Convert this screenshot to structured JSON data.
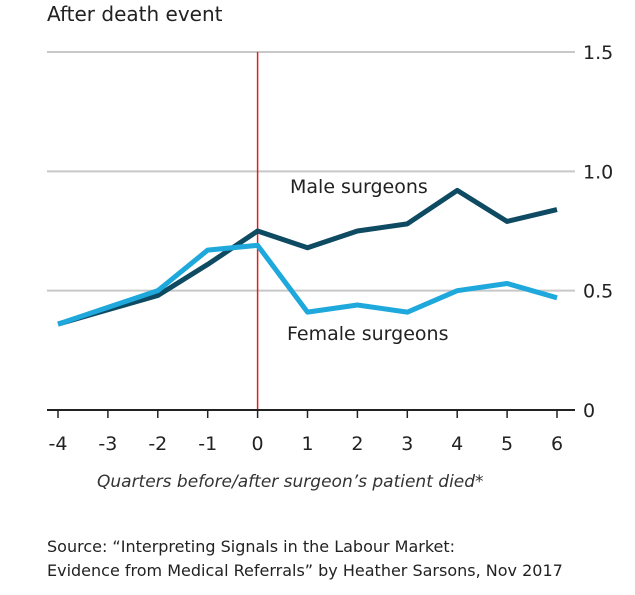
{
  "chart_data": {
    "type": "line",
    "title": "After death event",
    "xlabel": "Quarters before/after surgeon’s patient died*",
    "ylabel": "",
    "x": [
      -4,
      -3,
      -2,
      -1,
      0,
      1,
      2,
      3,
      4,
      5,
      6
    ],
    "x_tick_labels": [
      "-4",
      "-3",
      "-2",
      "-1",
      "0",
      "1",
      "2",
      "3",
      "4",
      "5",
      "6"
    ],
    "y_ticks": [
      0,
      0.5,
      1.0,
      1.5
    ],
    "y_tick_labels": [
      "0",
      "0.5",
      "1.0",
      "1.5"
    ],
    "ylim": [
      0,
      1.5
    ],
    "xlim": [
      -4,
      6
    ],
    "grid": true,
    "event_marker_x": 0,
    "series": [
      {
        "name": "Male surgeons",
        "color": "#0e4a62",
        "values": [
          0.36,
          0.42,
          0.48,
          0.61,
          0.75,
          0.68,
          0.75,
          0.78,
          0.92,
          0.79,
          0.84
        ]
      },
      {
        "name": "Female surgeons",
        "color": "#1ea8dc",
        "values": [
          0.36,
          0.43,
          0.5,
          0.67,
          0.69,
          0.41,
          0.44,
          0.41,
          0.5,
          0.53,
          0.47
        ]
      }
    ],
    "annotations": {
      "male_label": "Male surgeons",
      "female_label": "Female surgeons"
    }
  },
  "source": {
    "line1": "Source: “Interpreting Signals in the Labour Market:",
    "line2": "Evidence from Medical Referrals” by Heather Sarsons, Nov 2017"
  },
  "colors": {
    "grid": "#c8c8c8",
    "axis": "#222222",
    "event_line": "#e0201a"
  }
}
